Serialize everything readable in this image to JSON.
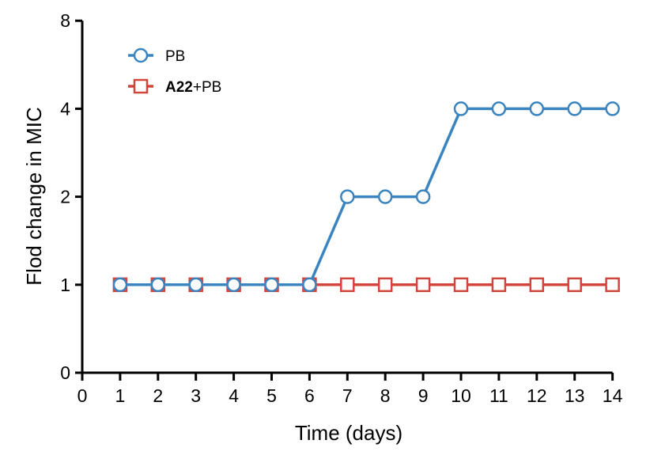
{
  "chart_data": {
    "type": "line",
    "xlabel": "Time (days)",
    "ylabel": "Flod change in MIC",
    "x_ticks": [
      "0",
      "1",
      "2",
      "3",
      "4",
      "5",
      "6",
      "7",
      "8",
      "9",
      "10",
      "11",
      "12",
      "13",
      "14"
    ],
    "y_ticks": [
      "0",
      "1",
      "2",
      "4",
      "8"
    ],
    "y_scale": "categorical, evenly spaced ticks 0, 1, 2, 4, 8",
    "xlim": [
      0,
      14
    ],
    "grid": false,
    "legend_position": "top-left",
    "series": [
      {
        "name": "PB",
        "color": "#3a84c0",
        "marker": "circle",
        "x": [
          1,
          2,
          3,
          4,
          5,
          6,
          7,
          8,
          9,
          10,
          11,
          12,
          13,
          14
        ],
        "y": [
          1,
          1,
          1,
          1,
          1,
          1,
          2,
          2,
          2,
          4,
          4,
          4,
          4,
          4
        ]
      },
      {
        "name": "A22+PB",
        "name_bold_part": "A22",
        "name_rest_part": "+PB",
        "color": "#d2453b",
        "marker": "square",
        "x": [
          1,
          2,
          3,
          4,
          5,
          6,
          7,
          8,
          9,
          10,
          11,
          12,
          13,
          14
        ],
        "y": [
          1,
          1,
          1,
          1,
          1,
          1,
          1,
          1,
          1,
          1,
          1,
          1,
          1,
          1
        ]
      }
    ]
  }
}
